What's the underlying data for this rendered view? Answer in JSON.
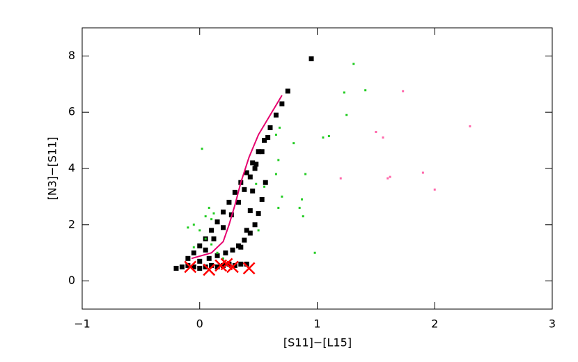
{
  "chart_data": {
    "type": "scatter",
    "xlabel": "[S11]−[L15]",
    "ylabel": "[N3]−[S11]",
    "xlim": [
      -1,
      3
    ],
    "ylim": [
      -1,
      9
    ],
    "xticks": [
      {
        "value": -1,
        "label": "−1"
      },
      0,
      1,
      2,
      3
    ],
    "yticks": [
      0,
      2,
      4,
      6,
      8
    ],
    "series": [
      {
        "color": "#000000",
        "marker": "square",
        "x": [
          -0.2,
          -0.15,
          -0.1,
          -0.05,
          0.0,
          0.05,
          0.1,
          0.15,
          0.2,
          0.25,
          0.3,
          0.35,
          0.4,
          -0.1,
          -0.05,
          0.0,
          0.05,
          0.1,
          0.15,
          0.2,
          0.25,
          0.3,
          0.35,
          0.4,
          0.45,
          0.5,
          0.55,
          0.6,
          0.65,
          0.7,
          0.75,
          0.0,
          0.08,
          0.15,
          0.22,
          0.28,
          0.33,
          0.38,
          0.43,
          0.47,
          0.5,
          0.53,
          0.56,
          0.35,
          0.4,
          0.43,
          0.45,
          0.47,
          0.05,
          0.12,
          0.2,
          0.27,
          0.33,
          0.38,
          0.43,
          0.48,
          0.53,
          0.58,
          0.95
        ],
        "y": [
          0.45,
          0.5,
          0.55,
          0.5,
          0.45,
          0.5,
          0.55,
          0.5,
          0.55,
          0.6,
          0.55,
          0.6,
          0.6,
          0.8,
          1.0,
          1.25,
          1.5,
          1.8,
          2.1,
          2.45,
          2.8,
          3.15,
          3.5,
          3.85,
          4.2,
          4.6,
          5.0,
          5.45,
          5.9,
          6.3,
          6.75,
          0.7,
          0.8,
          0.9,
          1.0,
          1.1,
          1.25,
          1.45,
          1.7,
          2.0,
          2.4,
          2.9,
          3.5,
          1.2,
          1.8,
          2.5,
          3.2,
          4.0,
          1.1,
          1.5,
          1.9,
          2.35,
          2.8,
          3.25,
          3.7,
          4.15,
          4.6,
          5.1,
          7.9
        ]
      },
      {
        "color": "#22cc22",
        "marker": "square",
        "x": [
          1.31,
          1.41,
          1.23,
          1.25,
          0.68,
          0.65,
          1.05,
          1.1,
          0.8,
          0.67,
          0.02,
          0.9,
          0.65,
          0.48,
          0.55,
          0.7,
          0.87,
          0.85,
          0.67,
          0.88,
          0.98,
          0.05,
          0.1,
          -0.05,
          -0.1,
          0.0,
          0.08,
          0.12,
          0.05,
          0.1,
          0.15,
          0.2,
          -0.05,
          0.5
        ],
        "y": [
          7.72,
          6.78,
          6.7,
          5.9,
          5.45,
          5.2,
          5.1,
          5.15,
          4.9,
          4.3,
          4.7,
          3.8,
          3.8,
          3.45,
          3.35,
          3.0,
          2.9,
          2.6,
          2.6,
          2.3,
          1.0,
          2.3,
          2.2,
          2.0,
          1.9,
          1.8,
          2.6,
          2.4,
          1.5,
          1.3,
          1.0,
          0.8,
          1.2,
          1.8
        ]
      },
      {
        "color": "#ff66aa",
        "marker": "square",
        "x": [
          1.73,
          2.3,
          1.5,
          1.56,
          1.2,
          1.6,
          1.62,
          1.9,
          2.0
        ],
        "y": [
          6.75,
          5.5,
          5.3,
          5.1,
          3.65,
          3.65,
          3.7,
          3.85,
          3.25
        ]
      },
      {
        "color": "#e6006e",
        "marker": "line",
        "x": [
          -0.07,
          0.1,
          0.2,
          0.25,
          0.3,
          0.35,
          0.42,
          0.5,
          0.6,
          0.7
        ],
        "y": [
          0.8,
          1.0,
          1.4,
          2.0,
          2.7,
          3.5,
          4.4,
          5.2,
          5.9,
          6.6
        ]
      },
      {
        "color": "#ff0000",
        "marker": "x",
        "x": [
          -0.08,
          0.08,
          0.18,
          0.23,
          0.28,
          0.42
        ],
        "y": [
          0.5,
          0.4,
          0.55,
          0.6,
          0.5,
          0.45
        ]
      }
    ]
  }
}
